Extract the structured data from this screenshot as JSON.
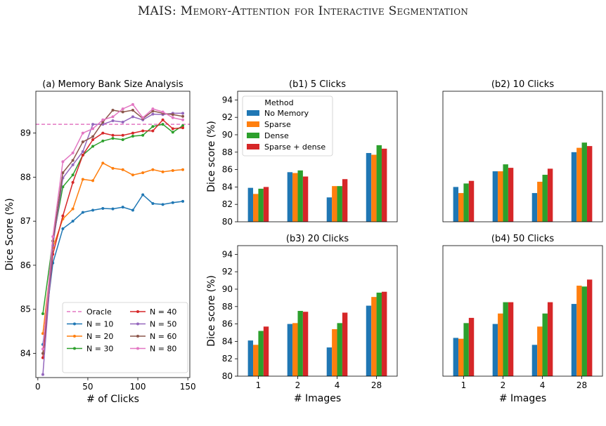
{
  "header": {
    "title": "MAIS: Memory-Attention for Interactive Segmentation"
  },
  "chart_data": [
    {
      "type": "line",
      "title": "(a) Memory Bank Size Analysis",
      "xlabel": "# of Clicks",
      "ylabel": "Dice Score (%)",
      "xlim": [
        -2,
        152
      ],
      "ylim": [
        83.45,
        89.95
      ],
      "xticks": [
        0,
        50,
        100,
        150
      ],
      "yticks": [
        84,
        85,
        86,
        87,
        88,
        89
      ],
      "legend_placement": "lower-right",
      "reference": {
        "name": "Oracle",
        "value": 89.2,
        "color": "#e377c2"
      },
      "x": [
        5,
        15,
        25,
        35,
        45,
        55,
        65,
        75,
        85,
        95,
        105,
        115,
        125,
        135,
        145
      ],
      "series": [
        {
          "name": "N = 10",
          "color": "#1f77b4",
          "values": [
            84.2,
            86.05,
            86.83,
            87.0,
            87.2,
            87.25,
            87.29,
            87.28,
            87.32,
            87.25,
            87.6,
            87.4,
            87.38,
            87.42,
            87.45
          ]
        },
        {
          "name": "N = 20",
          "color": "#ff7f0e",
          "values": [
            84.45,
            86.4,
            87.05,
            87.28,
            87.95,
            87.92,
            88.32,
            88.2,
            88.17,
            88.05,
            88.1,
            88.17,
            88.12,
            88.15,
            88.17
          ]
        },
        {
          "name": "N = 30",
          "color": "#2ca02c",
          "values": [
            84.9,
            86.55,
            87.78,
            88.05,
            88.5,
            88.7,
            88.82,
            88.88,
            88.85,
            88.93,
            88.95,
            89.15,
            89.2,
            89.02,
            89.17
          ]
        },
        {
          "name": "N = 40",
          "color": "#d62728",
          "values": [
            83.9,
            86.25,
            87.12,
            87.88,
            88.5,
            88.85,
            89.0,
            88.95,
            88.95,
            89.0,
            89.05,
            89.05,
            89.3,
            89.1,
            89.12
          ]
        },
        {
          "name": "N = 50",
          "color": "#9467bd",
          "values": [
            83.52,
            86.45,
            87.98,
            88.28,
            88.58,
            89.2,
            89.2,
            89.28,
            89.25,
            89.37,
            89.3,
            89.43,
            89.42,
            89.45,
            89.45
          ]
        },
        {
          "name": "N = 60",
          "color": "#8c564b",
          "values": [
            84.0,
            86.55,
            88.1,
            88.38,
            88.8,
            88.92,
            89.25,
            89.52,
            89.48,
            89.52,
            89.33,
            89.5,
            89.45,
            89.42,
            89.38
          ]
        },
        {
          "name": "N = 80",
          "color": "#e377c2",
          "values": [
            84.1,
            86.65,
            88.35,
            88.55,
            89.0,
            89.1,
            89.3,
            89.37,
            89.55,
            89.65,
            89.35,
            89.55,
            89.48,
            89.35,
            89.3
          ]
        }
      ]
    },
    {
      "type": "bar",
      "title": "(b1) 5 Clicks",
      "ylabel": "Dice score (%)",
      "xlabel": "",
      "ylim": [
        80,
        95
      ],
      "yticks": [
        80,
        82,
        84,
        86,
        88,
        90,
        92,
        94
      ],
      "categories": [
        "1",
        "2",
        "4",
        "28"
      ],
      "legend_title": "Method",
      "legend_placement": "upper-left",
      "series": [
        {
          "name": "No Memory",
          "color": "#1f77b4",
          "values": [
            83.9,
            85.7,
            82.8,
            87.9
          ]
        },
        {
          "name": "Sparse",
          "color": "#ff7f0e",
          "values": [
            83.2,
            85.6,
            84.1,
            87.7
          ]
        },
        {
          "name": "Dense",
          "color": "#2ca02c",
          "values": [
            83.8,
            85.9,
            84.1,
            88.8
          ]
        },
        {
          "name": "Sparse + dense",
          "color": "#d62728",
          "values": [
            84.0,
            85.2,
            84.9,
            88.4
          ]
        }
      ]
    },
    {
      "type": "bar",
      "title": "(b2) 10 Clicks",
      "ylabel": "",
      "xlabel": "",
      "ylim": [
        80,
        95
      ],
      "categories": [
        "1",
        "2",
        "4",
        "28"
      ],
      "series": [
        {
          "name": "No Memory",
          "color": "#1f77b4",
          "values": [
            84.0,
            85.8,
            83.3,
            88.0
          ]
        },
        {
          "name": "Sparse",
          "color": "#ff7f0e",
          "values": [
            83.3,
            85.8,
            84.6,
            88.5
          ]
        },
        {
          "name": "Dense",
          "color": "#2ca02c",
          "values": [
            84.4,
            86.6,
            85.4,
            89.1
          ]
        },
        {
          "name": "Sparse + dense",
          "color": "#d62728",
          "values": [
            84.7,
            86.2,
            86.1,
            88.7
          ]
        }
      ]
    },
    {
      "type": "bar",
      "title": "(b3) 20 Clicks",
      "ylabel": "Dice score (%)",
      "xlabel": "# Images",
      "ylim": [
        80,
        95
      ],
      "yticks": [
        80,
        82,
        84,
        86,
        88,
        90,
        92,
        94
      ],
      "categories": [
        "1",
        "2",
        "4",
        "28"
      ],
      "series": [
        {
          "name": "No Memory",
          "color": "#1f77b4",
          "values": [
            84.1,
            86.0,
            83.3,
            88.1
          ]
        },
        {
          "name": "Sparse",
          "color": "#ff7f0e",
          "values": [
            83.6,
            86.1,
            85.4,
            89.1
          ]
        },
        {
          "name": "Dense",
          "color": "#2ca02c",
          "values": [
            85.2,
            87.5,
            86.1,
            89.6
          ]
        },
        {
          "name": "Sparse + dense",
          "color": "#d62728",
          "values": [
            85.7,
            87.4,
            87.3,
            89.7
          ]
        }
      ]
    },
    {
      "type": "bar",
      "title": "(b4) 50 Clicks",
      "ylabel": "",
      "xlabel": "# Images",
      "ylim": [
        80,
        95
      ],
      "categories": [
        "1",
        "2",
        "4",
        "28"
      ],
      "series": [
        {
          "name": "No Memory",
          "color": "#1f77b4",
          "values": [
            84.4,
            86.0,
            83.6,
            88.3
          ]
        },
        {
          "name": "Sparse",
          "color": "#ff7f0e",
          "values": [
            84.3,
            87.2,
            85.7,
            90.4
          ]
        },
        {
          "name": "Dense",
          "color": "#2ca02c",
          "values": [
            86.1,
            88.5,
            87.2,
            90.3
          ]
        },
        {
          "name": "Sparse + dense",
          "color": "#d62728",
          "values": [
            86.7,
            88.5,
            88.5,
            91.1
          ]
        }
      ]
    }
  ]
}
